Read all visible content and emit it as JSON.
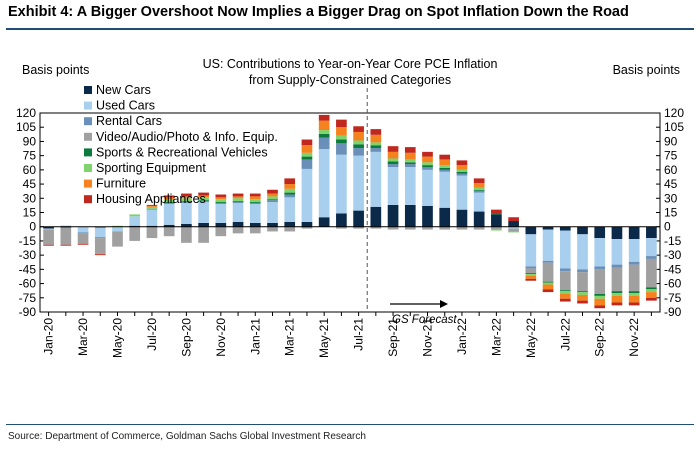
{
  "exhibit": {
    "title": "Exhibit 4: A Bigger Overshoot Now Implies a Bigger Drag on Spot Inflation Down the Road",
    "source": "Source: Department of Commerce, Goldman Sachs Global Investment Research"
  },
  "chart_data": {
    "type": "bar",
    "stacked": true,
    "title": "US: Contributions to Year-on-Year Core PCE Inflation",
    "subtitle": "from Supply-Constrained Categories",
    "ylabel_left": "Basis points",
    "ylabel_right": "Basis points",
    "ylim": [
      -90,
      120
    ],
    "yticks": [
      120,
      105,
      90,
      75,
      60,
      45,
      30,
      15,
      0,
      -15,
      -30,
      -45,
      -60,
      -75,
      -90
    ],
    "legend_position": "top-left",
    "forecast_label": "GS Forecast",
    "forecast_starts_after": "Jul-21",
    "categories": [
      "Jan-20",
      "Feb-20",
      "Mar-20",
      "Apr-20",
      "May-20",
      "Jun-20",
      "Jul-20",
      "Aug-20",
      "Sep-20",
      "Oct-20",
      "Nov-20",
      "Dec-20",
      "Jan-21",
      "Feb-21",
      "Mar-21",
      "Apr-21",
      "May-21",
      "Jun-21",
      "Jul-21",
      "Aug-21",
      "Sep-21",
      "Oct-21",
      "Nov-21",
      "Dec-21",
      "Jan-22",
      "Feb-22",
      "Mar-22",
      "Apr-22",
      "May-22",
      "Jun-22",
      "Jul-22",
      "Aug-22",
      "Sep-22",
      "Oct-22",
      "Nov-22",
      "Dec-22"
    ],
    "tick_labels": [
      "Jan-20",
      "Mar-20",
      "May-20",
      "Jul-20",
      "Sep-20",
      "Nov-20",
      "Jan-21",
      "Mar-21",
      "May-21",
      "Jul-21",
      "Sep-21",
      "Nov-21",
      "Jan-22",
      "Mar-22",
      "May-22",
      "Jul-22",
      "Sep-22",
      "Nov-22"
    ],
    "series": [
      {
        "name": "New Cars",
        "color": "#0b2a4a",
        "values": [
          -2,
          -1,
          0,
          -1,
          0,
          1,
          1,
          2,
          3,
          4,
          4,
          5,
          4,
          4,
          5,
          5,
          10,
          14,
          17,
          21,
          23,
          23,
          22,
          20,
          18,
          16,
          13,
          6,
          -8,
          -3,
          -4,
          -8,
          -12,
          -13,
          -13,
          -12
        ]
      },
      {
        "name": "Used Cars",
        "color": "#a9cfee",
        "values": [
          -1,
          0,
          -6,
          -10,
          -5,
          10,
          17,
          22,
          22,
          22,
          20,
          20,
          20,
          22,
          26,
          56,
          72,
          62,
          58,
          58,
          40,
          40,
          38,
          38,
          36,
          20,
          0,
          -2,
          -34,
          -33,
          -40,
          -37,
          -30,
          -27,
          -24,
          -19
        ]
      },
      {
        "name": "Rental Cars",
        "color": "#6a8fb8",
        "values": [
          0,
          1,
          -1,
          -1,
          0,
          0,
          1,
          1,
          1,
          1,
          1,
          1,
          1,
          2,
          3,
          10,
          12,
          12,
          8,
          4,
          3,
          3,
          3,
          2,
          2,
          2,
          0,
          0,
          -2,
          -2,
          -3,
          -3,
          -3,
          -3,
          -3,
          -3
        ]
      },
      {
        "name": "Video/Audio/Photo & Info. Equip.",
        "color": "#a0a0a0",
        "values": [
          -16,
          -18,
          -11,
          -16,
          -16,
          -15,
          -12,
          -10,
          -17,
          -17,
          -10,
          -7,
          -7,
          -5,
          -5,
          -2,
          0,
          -2,
          -2,
          -2,
          -3,
          -3,
          -3,
          -3,
          -3,
          -3,
          -3,
          -3,
          -5,
          -20,
          -20,
          -20,
          -26,
          -25,
          -28,
          -30
        ]
      },
      {
        "name": "Sports & Recreational Vehicles",
        "color": "#0c7a3b",
        "values": [
          0,
          0,
          0,
          0,
          0,
          0,
          0,
          1,
          1,
          1,
          1,
          1,
          1,
          1,
          2,
          3,
          4,
          4,
          4,
          3,
          3,
          2,
          2,
          2,
          2,
          1,
          1,
          0,
          -1,
          -1,
          -1,
          -1,
          -2,
          -2,
          -2,
          -2
        ]
      },
      {
        "name": "Sporting Equipment",
        "color": "#7ed36a",
        "values": [
          0,
          0,
          0,
          0,
          1,
          2,
          2,
          3,
          3,
          3,
          3,
          3,
          3,
          3,
          4,
          4,
          4,
          4,
          4,
          3,
          3,
          3,
          3,
          3,
          2,
          2,
          -1,
          -1,
          -2,
          -2,
          -3,
          -3,
          -3,
          -3,
          -3,
          -3
        ]
      },
      {
        "name": "Furniture",
        "color": "#f5821f",
        "values": [
          0,
          0,
          0,
          -1,
          0,
          0,
          1,
          2,
          2,
          2,
          2,
          2,
          3,
          3,
          5,
          8,
          10,
          9,
          9,
          8,
          7,
          7,
          6,
          6,
          5,
          5,
          0,
          0,
          -3,
          -5,
          -5,
          -6,
          -7,
          -7,
          -7,
          -6
        ]
      },
      {
        "name": "Housing Appliances",
        "color": "#c0281f",
        "values": [
          -1,
          -1,
          -1,
          -1,
          0,
          0,
          1,
          2,
          3,
          3,
          3,
          3,
          3,
          4,
          6,
          6,
          6,
          8,
          6,
          6,
          6,
          6,
          5,
          5,
          5,
          5,
          4,
          4,
          -2,
          -3,
          -3,
          -3,
          -3,
          -3,
          -3,
          -3
        ]
      }
    ]
  }
}
